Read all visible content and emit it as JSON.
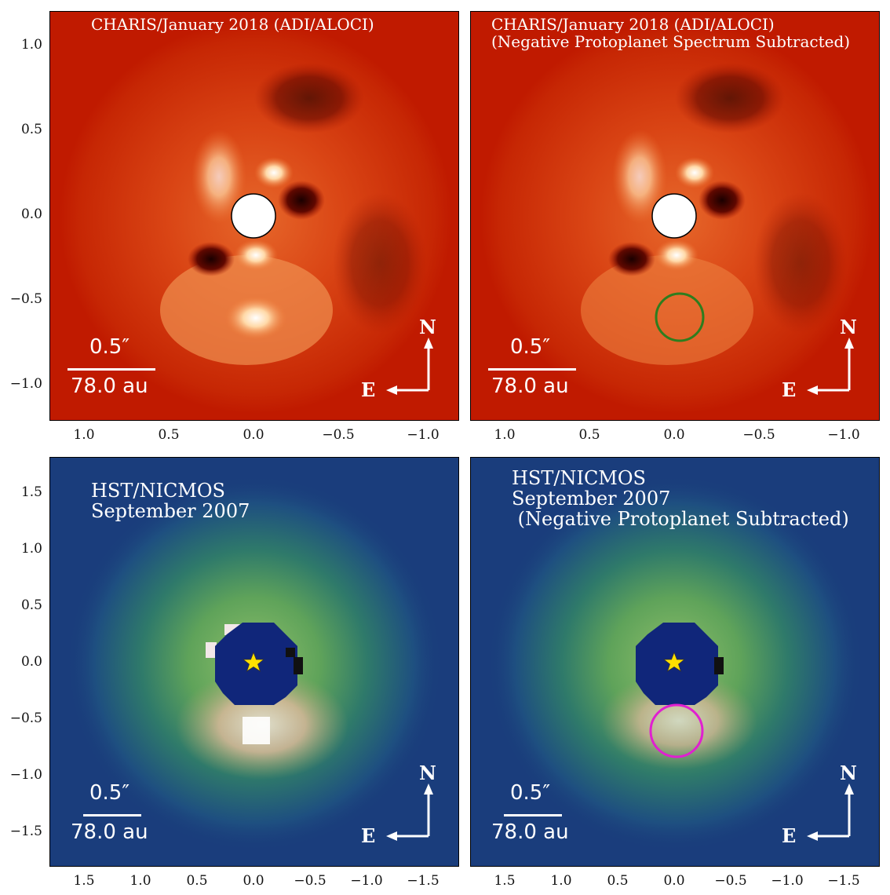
{
  "panels": [
    {
      "id": "top-left",
      "title": "CHARIS/January 2018 (ADI/ALOCI)",
      "scale_angular": "0.5″",
      "scale_physical": "78.0 au",
      "compass_n": "N",
      "compass_e": "E",
      "y_ticks": [
        "1.0",
        "0.5",
        "0.0",
        "−0.5",
        "−1.0"
      ],
      "x_ticks": [
        "1.0",
        "0.5",
        "0.0",
        "−0.5",
        "−1.0"
      ],
      "colormap": "red-hot"
    },
    {
      "id": "top-right",
      "title": "CHARIS/January 2018 (ADI/ALOCI)\n(Negative Protoplanet Spectrum Subtracted)",
      "scale_angular": "0.5″",
      "scale_physical": "78.0 au",
      "compass_n": "N",
      "compass_e": "E",
      "x_ticks": [
        "1.0",
        "0.5",
        "0.0",
        "−0.5",
        "−1.0"
      ],
      "marker_color": "#2e7d1e"
    },
    {
      "id": "bottom-left",
      "title": "HST/NICMOS\nSeptember 2007",
      "scale_angular": "0.5″",
      "scale_physical": "78.0 au",
      "compass_n": "N",
      "compass_e": "E",
      "y_ticks": [
        "1.5",
        "1.0",
        "0.5",
        "0.0",
        "−0.5",
        "−1.0",
        "−1.5"
      ],
      "x_ticks": [
        "1.5",
        "1.0",
        "0.5",
        "0.0",
        "−0.5",
        "−1.0",
        "−1.5"
      ],
      "colormap": "blue-green-tan"
    },
    {
      "id": "bottom-right",
      "title": "HST/NICMOS\nSeptember 2007\n (Negative Protoplanet Subtracted)",
      "scale_angular": "0.5″",
      "scale_physical": "78.0 au",
      "compass_n": "N",
      "compass_e": "E",
      "x_ticks": [
        "1.5",
        "1.0",
        "0.5",
        "0.0",
        "−0.5",
        "−1.0",
        "−1.5"
      ],
      "marker_color": "#e020d0"
    }
  ],
  "colors": {
    "red_bg": "#c01a00",
    "blue_bg": "#1a3d7c",
    "star": "#ffe000"
  }
}
